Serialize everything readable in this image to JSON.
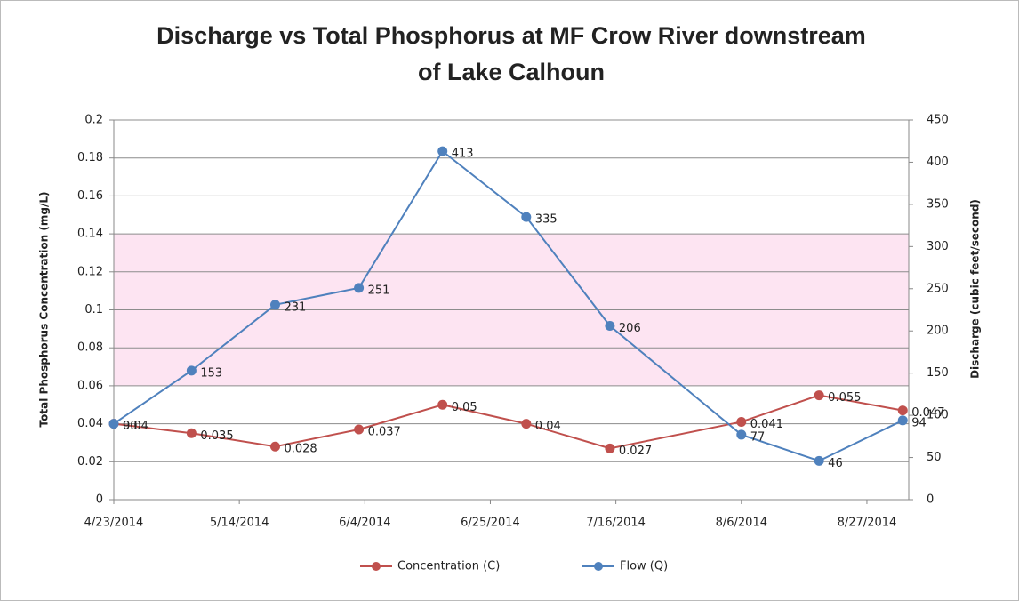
{
  "chart_data": {
    "type": "line",
    "title": [
      "Discharge vs Total Phosphorus at MF Crow River downstream",
      "of Lake Calhoun"
    ],
    "y_label": "Total Phosphorus Concentration (mg/L)",
    "y2_label": "Discharge (cubic feet/second)",
    "x": [
      "4/23/2014",
      "5/6/2014",
      "5/20/2014",
      "6/3/2014",
      "6/17/2014",
      "7/1/2014",
      "7/15/2014",
      "8/6/2014",
      "8/19/2014",
      "9/2/2014"
    ],
    "series": [
      {
        "name": "Concentration (C)",
        "color": "#c0504d",
        "values": [
          0.04,
          0.035,
          0.028,
          0.037,
          0.05,
          0.04,
          0.027,
          0.041,
          0.055,
          0.047
        ]
      },
      {
        "name": "Flow (Q)",
        "color": "#4f81bd",
        "axis": "y2",
        "values": [
          90,
          153,
          231,
          251,
          413,
          335,
          206,
          77,
          46,
          94
        ]
      }
    ],
    "xlim": [
      "4/23/2014",
      "9/3/2014"
    ],
    "xticks": [
      "4/23/2014",
      "5/14/2014",
      "6/4/2014",
      "6/25/2014",
      "7/16/2014",
      "8/6/2014",
      "8/27/2014"
    ],
    "ylim": [
      0,
      0.2
    ],
    "yticks": [
      0,
      0.02,
      0.04,
      0.06,
      0.08,
      0.1,
      0.12,
      0.14,
      0.16,
      0.18,
      0.2
    ],
    "y2lim": [
      0,
      450
    ],
    "y2ticks": [
      0,
      50,
      100,
      150,
      200,
      250,
      300,
      350,
      400,
      450
    ],
    "band": {
      "range": [
        0.06,
        0.14
      ],
      "color": "#fde4f2"
    },
    "grid": true,
    "legend": "bottom"
  }
}
